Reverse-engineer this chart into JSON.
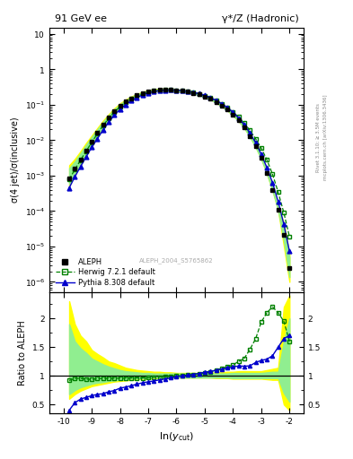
{
  "title_left": "91 GeV ee",
  "title_right": "γ*/Z (Hadronic)",
  "ylabel_main": "σ(4 jet)/σ(inclusive)",
  "ylabel_ratio": "Ratio to ALEPH",
  "xlabel": "ln(y_{cut})",
  "watermark": "ALEPH_2004_S5765862",
  "right_label": "mcplots.cern.ch [arXiv:1306.3436]",
  "right_label2": "Rivet 3.1.10; ≥ 3.5M events",
  "xlim": [
    -10.5,
    -1.5
  ],
  "ylim_ratio": [
    0.35,
    2.45
  ],
  "ratio_yticks": [
    0.5,
    1.0,
    1.5,
    2.0
  ],
  "x_data": [
    -9.8,
    -9.6,
    -9.4,
    -9.2,
    -9.0,
    -8.8,
    -8.6,
    -8.4,
    -8.2,
    -8.0,
    -7.8,
    -7.6,
    -7.4,
    -7.2,
    -7.0,
    -6.8,
    -6.6,
    -6.4,
    -6.2,
    -6.0,
    -5.8,
    -5.6,
    -5.4,
    -5.2,
    -5.0,
    -4.8,
    -4.6,
    -4.4,
    -4.2,
    -4.0,
    -3.8,
    -3.6,
    -3.4,
    -3.2,
    -3.0,
    -2.8,
    -2.6,
    -2.4,
    -2.2,
    -2.0
  ],
  "aleph_y": [
    0.00085,
    0.00155,
    0.00285,
    0.0052,
    0.0093,
    0.016,
    0.027,
    0.043,
    0.065,
    0.092,
    0.122,
    0.152,
    0.182,
    0.21,
    0.235,
    0.252,
    0.262,
    0.265,
    0.263,
    0.257,
    0.247,
    0.233,
    0.215,
    0.193,
    0.17,
    0.145,
    0.119,
    0.094,
    0.072,
    0.052,
    0.036,
    0.023,
    0.013,
    0.0067,
    0.0031,
    0.0012,
    0.0004,
    0.00011,
    2.1e-05,
    2.5e-06
  ],
  "aleph_err": [
    0.0001,
    0.00015,
    0.00025,
    0.0004,
    0.0007,
    0.001,
    0.002,
    0.003,
    0.004,
    0.005,
    0.006,
    0.007,
    0.007,
    0.008,
    0.008,
    0.009,
    0.009,
    0.009,
    0.009,
    0.008,
    0.008,
    0.007,
    0.007,
    0.006,
    0.006,
    0.005,
    0.004,
    0.003,
    0.003,
    0.002,
    0.001,
    0.001,
    0.0006,
    0.0003,
    0.0001,
    6e-05,
    2e-05,
    6e-06,
    2e-06,
    3e-07
  ],
  "herwig_y": [
    0.00078,
    0.00148,
    0.00272,
    0.0049,
    0.0087,
    0.0152,
    0.0258,
    0.0411,
    0.0622,
    0.0882,
    0.1172,
    0.1462,
    0.175,
    0.202,
    0.227,
    0.245,
    0.256,
    0.261,
    0.261,
    0.256,
    0.248,
    0.236,
    0.22,
    0.2,
    0.178,
    0.155,
    0.131,
    0.106,
    0.083,
    0.062,
    0.045,
    0.03,
    0.019,
    0.011,
    0.006,
    0.0028,
    0.0011,
    0.00034,
    9e-05,
    1.9e-05
  ],
  "pythia_y": [
    0.00045,
    0.00092,
    0.00178,
    0.0034,
    0.0063,
    0.011,
    0.0195,
    0.032,
    0.051,
    0.074,
    0.101,
    0.13,
    0.16,
    0.188,
    0.214,
    0.234,
    0.248,
    0.256,
    0.259,
    0.257,
    0.25,
    0.239,
    0.224,
    0.205,
    0.183,
    0.159,
    0.133,
    0.107,
    0.083,
    0.061,
    0.042,
    0.027,
    0.016,
    0.0085,
    0.004,
    0.0017,
    0.00063,
    0.000185,
    4.3e-05,
    7.3e-06
  ],
  "herwig_ratio": [
    0.918,
    0.955,
    0.954,
    0.942,
    0.935,
    0.95,
    0.956,
    0.956,
    0.957,
    0.959,
    0.96,
    0.961,
    0.962,
    0.962,
    0.966,
    0.972,
    0.977,
    0.985,
    0.992,
    0.996,
    1.004,
    1.013,
    1.023,
    1.036,
    1.047,
    1.069,
    1.101,
    1.128,
    1.153,
    1.192,
    1.25,
    1.304,
    1.462,
    1.642,
    1.935,
    2.1,
    2.2,
    2.1,
    1.95,
    1.6
  ],
  "pythia_ratio": [
    0.4,
    0.53,
    0.594,
    0.625,
    0.654,
    0.677,
    0.688,
    0.722,
    0.744,
    0.785,
    0.804,
    0.828,
    0.855,
    0.879,
    0.895,
    0.911,
    0.929,
    0.946,
    0.966,
    0.985,
    1.0,
    1.012,
    1.026,
    1.042,
    1.063,
    1.076,
    1.097,
    1.118,
    1.138,
    1.153,
    1.173,
    1.167,
    1.174,
    1.231,
    1.269,
    1.29,
    1.35,
    1.5,
    1.65,
    1.7
  ],
  "yellow_lo": [
    0.6,
    0.68,
    0.74,
    0.78,
    0.82,
    0.84,
    0.86,
    0.88,
    0.9,
    0.91,
    0.92,
    0.93,
    0.94,
    0.95,
    0.95,
    0.96,
    0.96,
    0.96,
    0.97,
    0.97,
    0.97,
    0.97,
    0.97,
    0.97,
    0.97,
    0.97,
    0.96,
    0.96,
    0.96,
    0.95,
    0.95,
    0.95,
    0.95,
    0.95,
    0.95,
    0.94,
    0.93,
    0.93,
    0.5,
    0.4
  ],
  "yellow_hi": [
    2.3,
    1.9,
    1.7,
    1.6,
    1.45,
    1.38,
    1.32,
    1.25,
    1.22,
    1.18,
    1.14,
    1.12,
    1.1,
    1.09,
    1.08,
    1.07,
    1.07,
    1.06,
    1.06,
    1.05,
    1.05,
    1.05,
    1.05,
    1.05,
    1.05,
    1.05,
    1.06,
    1.06,
    1.07,
    1.07,
    1.08,
    1.08,
    1.08,
    1.08,
    1.08,
    1.1,
    1.12,
    1.14,
    2.2,
    2.4
  ],
  "green_lo": [
    0.68,
    0.75,
    0.8,
    0.83,
    0.86,
    0.88,
    0.89,
    0.91,
    0.92,
    0.93,
    0.94,
    0.95,
    0.95,
    0.96,
    0.96,
    0.97,
    0.97,
    0.97,
    0.97,
    0.97,
    0.97,
    0.97,
    0.97,
    0.97,
    0.97,
    0.97,
    0.97,
    0.97,
    0.97,
    0.96,
    0.96,
    0.96,
    0.96,
    0.96,
    0.96,
    0.96,
    0.96,
    0.96,
    0.7,
    0.55
  ],
  "green_hi": [
    1.9,
    1.6,
    1.48,
    1.4,
    1.3,
    1.25,
    1.2,
    1.16,
    1.13,
    1.1,
    1.08,
    1.07,
    1.06,
    1.05,
    1.05,
    1.04,
    1.04,
    1.04,
    1.04,
    1.04,
    1.04,
    1.04,
    1.04,
    1.04,
    1.04,
    1.04,
    1.04,
    1.04,
    1.04,
    1.05,
    1.05,
    1.05,
    1.05,
    1.05,
    1.05,
    1.06,
    1.07,
    1.07,
    1.6,
    2.0
  ],
  "color_aleph": "#000000",
  "color_herwig": "#008000",
  "color_pythia": "#0000cc",
  "color_yellow_band": "#ffff00",
  "color_green_band": "#90ee90",
  "legend_labels": [
    "ALEPH",
    "Herwig 7.2.1 default",
    "Pythia 8.308 default"
  ],
  "xticks": [
    -10,
    -9,
    -8,
    -7,
    -6,
    -5,
    -4,
    -3,
    -2
  ],
  "main_yticks": [
    1e-06,
    1e-05,
    0.0001,
    0.001,
    0.01,
    0.1,
    1.0,
    10.0
  ]
}
